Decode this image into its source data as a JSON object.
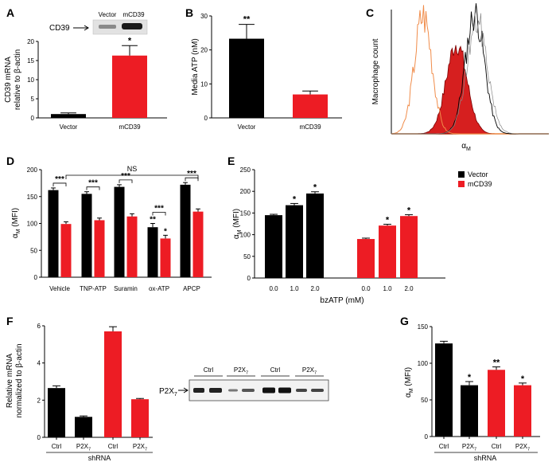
{
  "colors": {
    "vector": "#000000",
    "mcd39": "#ed1c24",
    "hist_orange": "#f08c4a"
  },
  "panels": {
    "A": "A",
    "B": "B",
    "C": "C",
    "D": "D",
    "E": "E",
    "F": "F",
    "G": "G"
  },
  "chart_data": [
    {
      "id": "A",
      "type": "bar",
      "ylabel_lines": [
        "CD39 mRNA",
        "relative to β-actin"
      ],
      "ylim": [
        0,
        20
      ],
      "yticks": [
        0,
        5,
        10,
        15,
        20
      ],
      "categories": [
        "Vector",
        "mCD39"
      ],
      "values": [
        1.0,
        16.3
      ],
      "errors": [
        0.3,
        2.6
      ],
      "colors": [
        "#000000",
        "#ed1c24"
      ],
      "significance": [
        "",
        "*"
      ],
      "blot": {
        "protein": "CD39",
        "lanes": [
          "Vector",
          "mCD39"
        ]
      }
    },
    {
      "id": "B",
      "type": "bar",
      "ylabel": "Media ATP (nM)",
      "ylim": [
        0,
        30
      ],
      "yticks": [
        0,
        10,
        20,
        30
      ],
      "categories": [
        "Vector",
        "mCD39"
      ],
      "values": [
        23.3,
        6.9
      ],
      "errors": [
        4.2,
        1.0
      ],
      "colors": [
        "#000000",
        "#ed1c24"
      ],
      "significance": [
        "**",
        ""
      ]
    },
    {
      "id": "C",
      "type": "area",
      "ylabel": "Macrophage count",
      "xlabel": "αM"
    },
    {
      "id": "D",
      "type": "bar",
      "ylabel": "αM (MFI)",
      "ylim": [
        0,
        200
      ],
      "yticks": [
        0,
        50,
        100,
        150,
        200
      ],
      "categories": [
        "Vehicle",
        "TNP-ATP",
        "Suramin",
        "ox-ATP",
        "APCP"
      ],
      "series": [
        {
          "color": "#000000",
          "values": [
            162,
            155,
            168,
            93,
            172
          ],
          "errors": [
            4,
            4,
            4,
            7,
            4
          ]
        },
        {
          "color": "#ed1c24",
          "values": [
            99,
            106,
            113,
            72,
            122
          ],
          "errors": [
            4,
            4,
            5,
            6,
            5
          ]
        }
      ],
      "pair_significance": [
        "***",
        "***",
        "***",
        "***",
        "***"
      ],
      "bar_significance": [
        [
          "",
          ""
        ],
        [
          "",
          ""
        ],
        [
          "",
          ""
        ],
        [
          "**",
          "*"
        ],
        [
          "",
          ""
        ]
      ],
      "ns_label": "NS"
    },
    {
      "id": "E",
      "type": "bar",
      "ylabel": "αM (MFI)",
      "xlabel": "bzATP (mM)",
      "ylim": [
        0,
        250
      ],
      "yticks": [
        0,
        50,
        100,
        150,
        200,
        250
      ],
      "groups": [
        {
          "name": "Vector",
          "color": "#000000",
          "doses": [
            "0.0",
            "1.0",
            "2.0"
          ],
          "values": [
            145,
            168,
            195
          ],
          "errors": [
            2,
            4,
            4
          ],
          "significance": [
            "",
            "*",
            "*"
          ]
        },
        {
          "name": "mCD39",
          "color": "#ed1c24",
          "doses": [
            "0.0",
            "1.0",
            "2.0"
          ],
          "values": [
            90,
            121,
            143
          ],
          "errors": [
            2,
            3,
            3
          ],
          "significance": [
            "",
            "*",
            "*"
          ]
        }
      ],
      "legend": [
        "Vector",
        "mCD39"
      ]
    },
    {
      "id": "F",
      "type": "bar",
      "ylabel_lines": [
        "Relative mRNA",
        "normalized to β-actin"
      ],
      "xlabel": "shRNA",
      "ylim": [
        0,
        6
      ],
      "yticks": [
        0,
        2,
        4,
        6
      ],
      "categories": [
        "Ctrl",
        "P2X7",
        "Ctrl",
        "P2X7"
      ],
      "values": [
        2.65,
        1.1,
        5.7,
        2.05
      ],
      "errors": [
        0.12,
        0.05,
        0.25,
        0.04
      ],
      "colors": [
        "#000000",
        "#000000",
        "#ed1c24",
        "#ed1c24"
      ],
      "blot": {
        "protein": "P2X7",
        "lanes": [
          "Ctrl",
          "P2X7",
          "Ctrl",
          "P2X7"
        ]
      }
    },
    {
      "id": "G",
      "type": "bar",
      "ylabel": "αM (MFI)",
      "xlabel": "shRNA",
      "ylim": [
        0,
        150
      ],
      "yticks": [
        0,
        50,
        100,
        150
      ],
      "categories": [
        "Ctrl",
        "P2X7",
        "Ctrl",
        "P2X7"
      ],
      "values": [
        127,
        70,
        91,
        70
      ],
      "errors": [
        3,
        5,
        4,
        3
      ],
      "colors": [
        "#000000",
        "#000000",
        "#ed1c24",
        "#ed1c24"
      ],
      "significance": [
        "",
        "*",
        "**",
        "*"
      ]
    }
  ]
}
